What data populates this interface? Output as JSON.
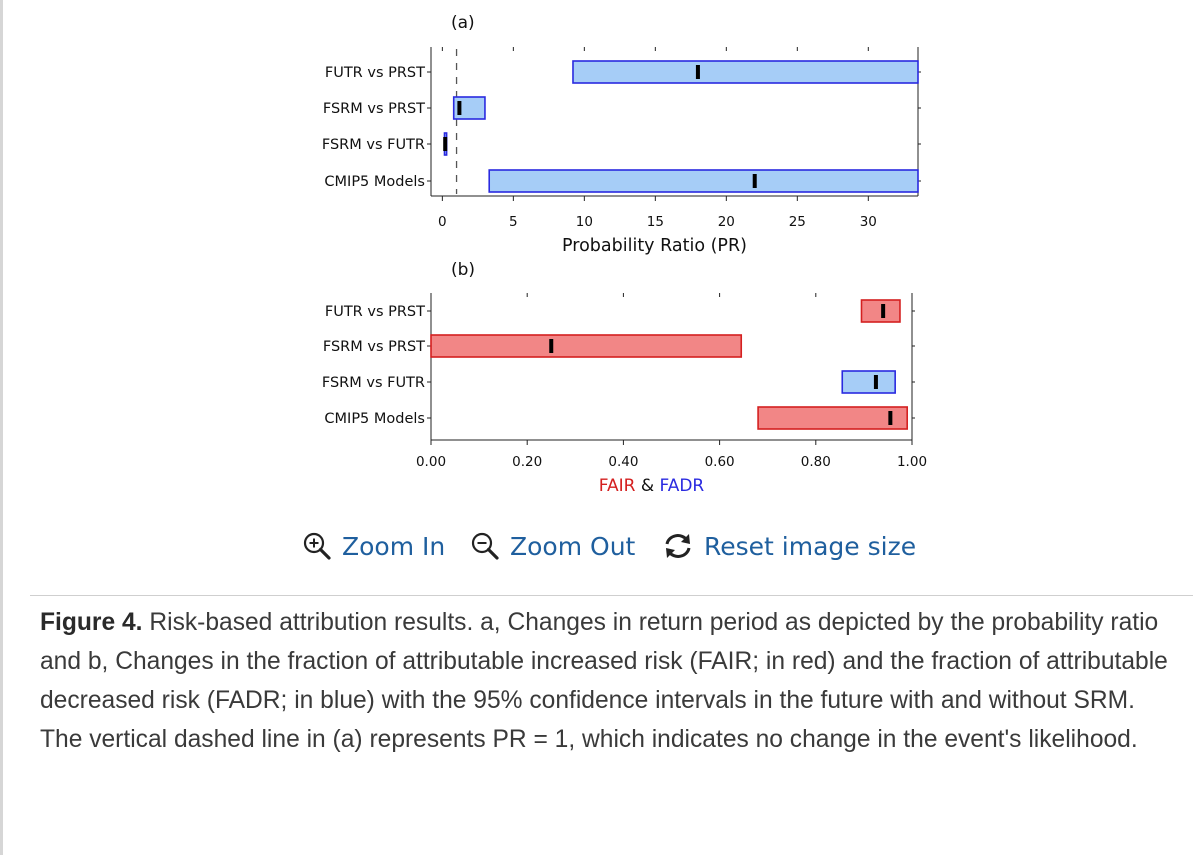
{
  "chart_data": [
    {
      "panel_label": "(a)",
      "type": "bar",
      "orientation": "horizontal",
      "categories": [
        "FUTR vs PRST",
        "FSRM vs PRST",
        "FSRM vs FUTR",
        "CMIP5 Models"
      ],
      "intervals": [
        {
          "category": "FUTR vs PRST",
          "low": 9.2,
          "high": 33.5,
          "median": 18,
          "color": "blue"
        },
        {
          "category": "FSRM vs PRST",
          "low": 0.8,
          "high": 3.0,
          "median": 1.2,
          "color": "blue"
        },
        {
          "category": "FSRM vs FUTR",
          "low": 0.15,
          "high": 0.3,
          "median": 0.2,
          "color": "blue"
        },
        {
          "category": "CMIP5 Models",
          "low": 3.3,
          "high": 33.5,
          "median": 22,
          "color": "blue"
        }
      ],
      "xlabel": "Probability Ratio (PR)",
      "xlim": [
        -0.8,
        33.5
      ],
      "xticks": [
        "0",
        "5",
        "10",
        "15",
        "20",
        "25",
        "30"
      ],
      "reference_line": {
        "x": 1,
        "style": "dashed"
      }
    },
    {
      "panel_label": "(b)",
      "type": "bar",
      "orientation": "horizontal",
      "categories": [
        "FUTR vs PRST",
        "FSRM vs PRST",
        "FSRM vs FUTR",
        "CMIP5 Models"
      ],
      "intervals": [
        {
          "category": "FUTR vs PRST",
          "low": 0.895,
          "high": 0.975,
          "median": 0.94,
          "color": "red"
        },
        {
          "category": "FSRM vs PRST",
          "low": 0.0,
          "high": 0.645,
          "median": 0.25,
          "color": "red"
        },
        {
          "category": "FSRM vs FUTR",
          "low": 0.855,
          "high": 0.965,
          "median": 0.925,
          "color": "blue"
        },
        {
          "category": "CMIP5 Models",
          "low": 0.68,
          "high": 0.99,
          "median": 0.955,
          "color": "red"
        }
      ],
      "xlabel_parts": [
        {
          "text": "FAIR",
          "color": "red"
        },
        {
          "text": "&",
          "color": "black"
        },
        {
          "text": "FADR",
          "color": "blue"
        }
      ],
      "xlim": [
        0.0,
        1.0
      ],
      "xticks": [
        "0.00",
        "0.20",
        "0.40",
        "0.60",
        "0.80",
        "1.00"
      ]
    }
  ],
  "colors": {
    "blue_fill": "#a6cdf7",
    "blue_edge": "#2a2ae0",
    "red_fill": "#f28686",
    "red_edge": "#d42020",
    "median_mark": "#000000",
    "link": "#1f5f9e"
  },
  "controls": {
    "zoom_in": {
      "label": "Zoom In",
      "icon": "zoom-in-icon"
    },
    "zoom_out": {
      "label": "Zoom Out",
      "icon": "zoom-out-icon"
    },
    "reset": {
      "label": "Reset image size",
      "icon": "refresh-icon"
    }
  },
  "caption": {
    "label": "Figure 4.",
    "text": "Risk-based attribution results. a, Changes in return period as depicted by the probability ratio and b, Changes in the fraction of attributable increased risk (FAIR; in red) and the fraction of attributable decreased risk (FADR; in blue) with the 95% confidence intervals in the future with and without SRM. The vertical dashed line in (a) represents PR = 1, which indicates no change in the event's likelihood."
  }
}
